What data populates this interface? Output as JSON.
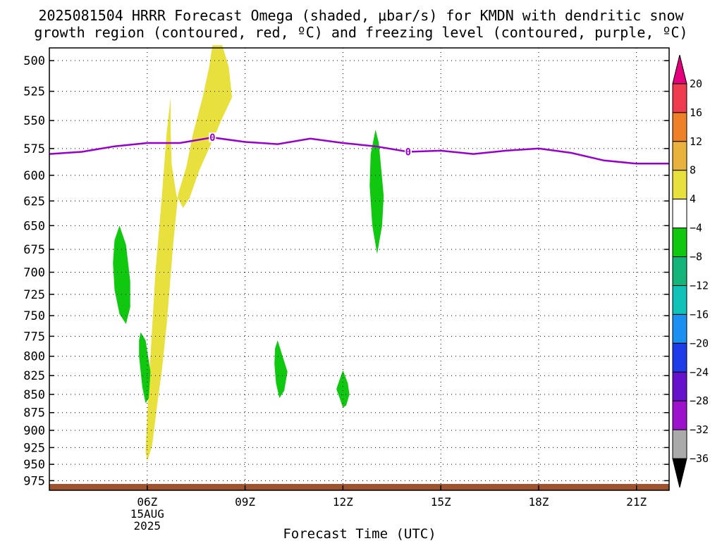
{
  "chart_data": {
    "type": "time-height contour",
    "title_line1": "2025081504 HRRR Forecast Omega (shaded, μbar/s) for KMDN with dendritic snow",
    "title_line2": "growth region (contoured, red, ºC) and freezing level (contoured, purple, ºC)",
    "xlabel": "Forecast Time (UTC)",
    "x_ticks": [
      {
        "hour": 6,
        "label": "06Z",
        "sub1": "15AUG",
        "sub2": "2025"
      },
      {
        "hour": 9,
        "label": "09Z"
      },
      {
        "hour": 12,
        "label": "12Z"
      },
      {
        "hour": 15,
        "label": "15Z"
      },
      {
        "hour": 18,
        "label": "18Z"
      },
      {
        "hour": 21,
        "label": "21Z"
      }
    ],
    "xlim": [
      3.0,
      22.0
    ],
    "y_ticks": [
      500,
      525,
      550,
      575,
      600,
      625,
      650,
      675,
      700,
      725,
      750,
      775,
      800,
      825,
      850,
      875,
      900,
      925,
      950,
      975
    ],
    "ylim": [
      490,
      990
    ],
    "y_scale": "log pressure (hPa), decreasing upward",
    "freezing_level": {
      "label": "0",
      "label_hours": [
        8.0,
        14.0
      ],
      "hours": [
        3.0,
        4.0,
        5.0,
        6.0,
        7.0,
        8.0,
        9.0,
        10.0,
        11.0,
        12.0,
        13.0,
        14.0,
        15.0,
        16.0,
        17.0,
        18.0,
        19.0,
        20.0,
        21.0,
        22.0
      ],
      "pressure": [
        580,
        578,
        573,
        570,
        570,
        565,
        569,
        571,
        566,
        570,
        573,
        578,
        577,
        580,
        577,
        575,
        579,
        586,
        589,
        589
      ],
      "color": "#9900cc"
    },
    "colorbar": {
      "ticks": [
        "20",
        "16",
        "12",
        "8",
        "4",
        "−4",
        "−8",
        "−12",
        "−16",
        "−20",
        "−24",
        "−28",
        "−32",
        "−36"
      ],
      "colors": [
        "#e4007c",
        "#f03c4f",
        "#ee8128",
        "#e8b23c",
        "#e8e03c",
        "#ffffff",
        "#11c811",
        "#13b57b",
        "#10c2b8",
        "#1a90f0",
        "#1e3ce8",
        "#6612cc",
        "#9c12cc",
        "#aaaaaa",
        "#000000"
      ]
    },
    "surface_color": "#a0522d",
    "omega_regions": [
      {
        "color": "#e8e03c",
        "points": [
          [
            6.0,
            946
          ],
          [
            6.15,
            922
          ],
          [
            6.3,
            866
          ],
          [
            6.45,
            818
          ],
          [
            6.6,
            760
          ],
          [
            6.8,
            668
          ],
          [
            6.95,
            618
          ],
          [
            7.2,
            592
          ],
          [
            7.4,
            562
          ],
          [
            7.7,
            530
          ],
          [
            7.9,
            505
          ],
          [
            8.0,
            488
          ],
          [
            8.3,
            488
          ],
          [
            8.5,
            505
          ],
          [
            8.6,
            530
          ],
          [
            8.3,
            548
          ],
          [
            8.0,
            568
          ],
          [
            7.6,
            595
          ],
          [
            7.3,
            622
          ],
          [
            7.1,
            632
          ],
          [
            6.9,
            620
          ],
          [
            6.75,
            590
          ],
          [
            6.72,
            560
          ],
          [
            6.72,
            530
          ],
          [
            6.6,
            560
          ],
          [
            6.45,
            620
          ],
          [
            6.25,
            700
          ],
          [
            6.1,
            800
          ],
          [
            6.0,
            880
          ],
          [
            5.95,
            930
          ]
        ]
      },
      {
        "color": "#11c811",
        "points": [
          [
            5.15,
            650
          ],
          [
            5.35,
            670
          ],
          [
            5.48,
            710
          ],
          [
            5.48,
            740
          ],
          [
            5.35,
            760
          ],
          [
            5.15,
            748
          ],
          [
            5.0,
            720
          ],
          [
            4.95,
            690
          ],
          [
            5.0,
            665
          ]
        ]
      },
      {
        "color": "#11c811",
        "points": [
          [
            5.8,
            770
          ],
          [
            5.95,
            780
          ],
          [
            6.1,
            820
          ],
          [
            6.05,
            855
          ],
          [
            5.95,
            862
          ],
          [
            5.85,
            840
          ],
          [
            5.75,
            800
          ],
          [
            5.75,
            780
          ]
        ]
      },
      {
        "color": "#11c811",
        "points": [
          [
            13.0,
            558
          ],
          [
            13.1,
            570
          ],
          [
            13.25,
            620
          ],
          [
            13.2,
            650
          ],
          [
            13.05,
            680
          ],
          [
            12.9,
            650
          ],
          [
            12.82,
            610
          ],
          [
            12.85,
            580
          ]
        ]
      },
      {
        "color": "#11c811",
        "points": [
          [
            10.0,
            780
          ],
          [
            10.15,
            800
          ],
          [
            10.3,
            820
          ],
          [
            10.2,
            845
          ],
          [
            10.05,
            855
          ],
          [
            9.95,
            835
          ],
          [
            9.9,
            810
          ],
          [
            9.92,
            790
          ]
        ]
      },
      {
        "color": "#11c811",
        "points": [
          [
            12.0,
            818
          ],
          [
            12.15,
            835
          ],
          [
            12.2,
            850
          ],
          [
            12.1,
            865
          ],
          [
            12.0,
            868
          ],
          [
            11.9,
            855
          ],
          [
            11.8,
            843
          ],
          [
            11.9,
            830
          ]
        ]
      }
    ]
  }
}
